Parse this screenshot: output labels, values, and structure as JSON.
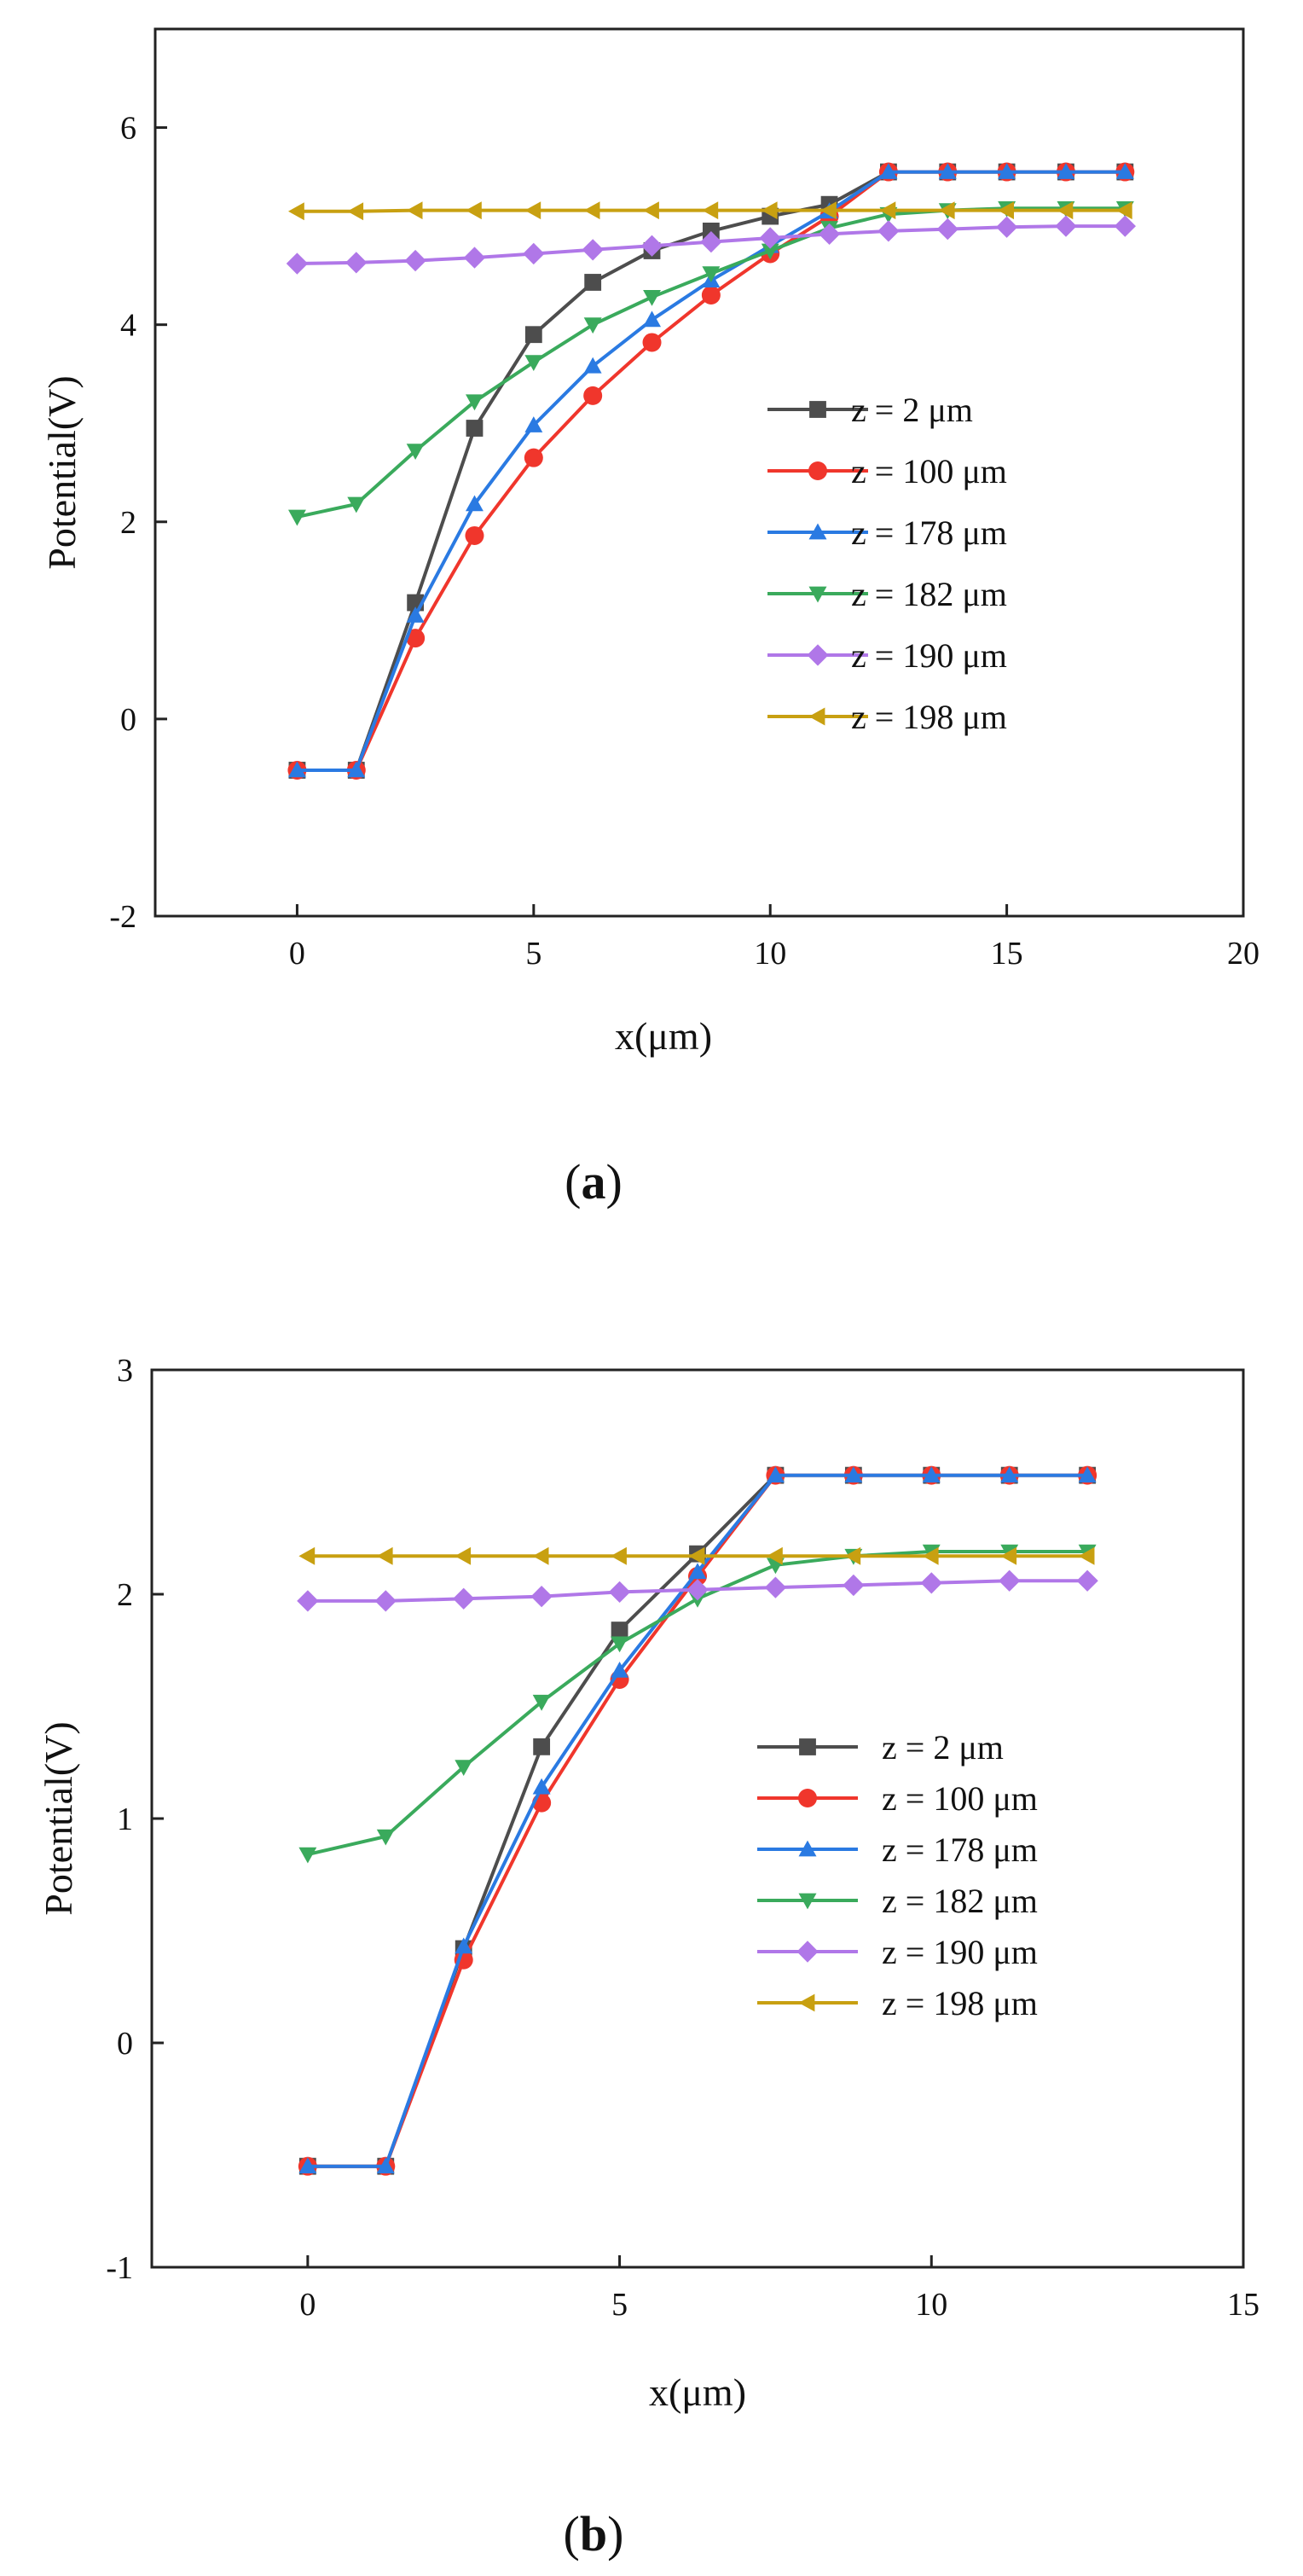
{
  "chart_data": [
    {
      "type": "line",
      "panel_label": "a",
      "title": "",
      "xlabel": "x(μm)",
      "ylabel": "Potential(V)",
      "xlim": [
        -3,
        20
      ],
      "ylim": [
        -2,
        7
      ],
      "xticks": [
        0,
        5,
        10,
        15,
        20
      ],
      "yticks": [
        -2,
        0,
        2,
        4,
        6
      ],
      "grid": false,
      "legend_position": "right-middle",
      "x": [
        0,
        1.25,
        2.5,
        3.75,
        5,
        6.25,
        7.5,
        8.75,
        10,
        11.25,
        12.5,
        13.75,
        15,
        16.25,
        17.5
      ],
      "series": [
        {
          "name": "z = 2 μm",
          "color": "#4d4d4d",
          "marker": "square",
          "values": [
            -0.52,
            -0.52,
            1.18,
            2.95,
            3.9,
            4.43,
            4.75,
            4.95,
            5.1,
            5.22,
            5.55,
            5.55,
            5.55,
            5.55,
            5.55
          ]
        },
        {
          "name": "z = 100 μm",
          "color": "#f0362c",
          "marker": "circle",
          "values": [
            -0.52,
            -0.52,
            0.82,
            1.86,
            2.65,
            3.28,
            3.82,
            4.3,
            4.72,
            5.1,
            5.55,
            5.55,
            5.55,
            5.55,
            5.55
          ]
        },
        {
          "name": "z = 178 μm",
          "color": "#2a7ae2",
          "marker": "triangle-up",
          "values": [
            -0.52,
            -0.52,
            1.05,
            2.18,
            2.98,
            3.58,
            4.05,
            4.45,
            4.8,
            5.15,
            5.55,
            5.55,
            5.55,
            5.55,
            5.55
          ]
        },
        {
          "name": "z = 182 μm",
          "color": "#3aaa5c",
          "marker": "triangle-down",
          "values": [
            2.05,
            2.18,
            2.72,
            3.22,
            3.62,
            4.0,
            4.28,
            4.52,
            4.75,
            4.98,
            5.12,
            5.16,
            5.18,
            5.18,
            5.18
          ]
        },
        {
          "name": "z = 190 μm",
          "color": "#b077e8",
          "marker": "diamond",
          "values": [
            4.62,
            4.63,
            4.65,
            4.68,
            4.72,
            4.76,
            4.8,
            4.84,
            4.88,
            4.92,
            4.95,
            4.97,
            4.99,
            5.0,
            5.0
          ]
        },
        {
          "name": "z = 198 μm",
          "color": "#c8a011",
          "marker": "triangle-left",
          "values": [
            5.15,
            5.15,
            5.16,
            5.16,
            5.16,
            5.16,
            5.16,
            5.16,
            5.16,
            5.16,
            5.16,
            5.16,
            5.16,
            5.16,
            5.16
          ]
        }
      ]
    },
    {
      "type": "line",
      "panel_label": "b",
      "title": "",
      "xlabel": "x(μm)",
      "ylabel": "Potential(V)",
      "xlim": [
        -2.5,
        15
      ],
      "ylim": [
        -1,
        3
      ],
      "xticks": [
        0,
        5,
        10,
        15
      ],
      "yticks": [
        -1,
        0,
        1,
        2,
        3
      ],
      "grid": false,
      "legend_position": "right-middle",
      "x": [
        0,
        1.25,
        2.5,
        3.75,
        5,
        6.25,
        7.5,
        8.75,
        10,
        11.25,
        12.5
      ],
      "series": [
        {
          "name": "z = 2 μm",
          "color": "#4d4d4d",
          "marker": "square",
          "values": [
            -0.55,
            -0.55,
            0.42,
            1.32,
            1.84,
            2.18,
            2.53,
            2.53,
            2.53,
            2.53,
            2.53
          ]
        },
        {
          "name": "z = 100 μm",
          "color": "#f0362c",
          "marker": "circle",
          "values": [
            -0.55,
            -0.55,
            0.37,
            1.07,
            1.62,
            2.08,
            2.53,
            2.53,
            2.53,
            2.53,
            2.53
          ]
        },
        {
          "name": "z = 178 μm",
          "color": "#2a7ae2",
          "marker": "triangle-up",
          "values": [
            -0.55,
            -0.55,
            0.43,
            1.14,
            1.66,
            2.1,
            2.53,
            2.53,
            2.53,
            2.53,
            2.53
          ]
        },
        {
          "name": "z = 182 μm",
          "color": "#3aaa5c",
          "marker": "triangle-down",
          "values": [
            0.84,
            0.92,
            1.23,
            1.52,
            1.78,
            1.98,
            2.13,
            2.17,
            2.19,
            2.19,
            2.19
          ]
        },
        {
          "name": "z = 190 μm",
          "color": "#b077e8",
          "marker": "diamond",
          "values": [
            1.97,
            1.97,
            1.98,
            1.99,
            2.01,
            2.02,
            2.03,
            2.04,
            2.05,
            2.06,
            2.06
          ]
        },
        {
          "name": "z = 198 μm",
          "color": "#c8a011",
          "marker": "triangle-left",
          "values": [
            2.17,
            2.17,
            2.17,
            2.17,
            2.17,
            2.17,
            2.17,
            2.17,
            2.17,
            2.17,
            2.17
          ]
        }
      ]
    }
  ]
}
